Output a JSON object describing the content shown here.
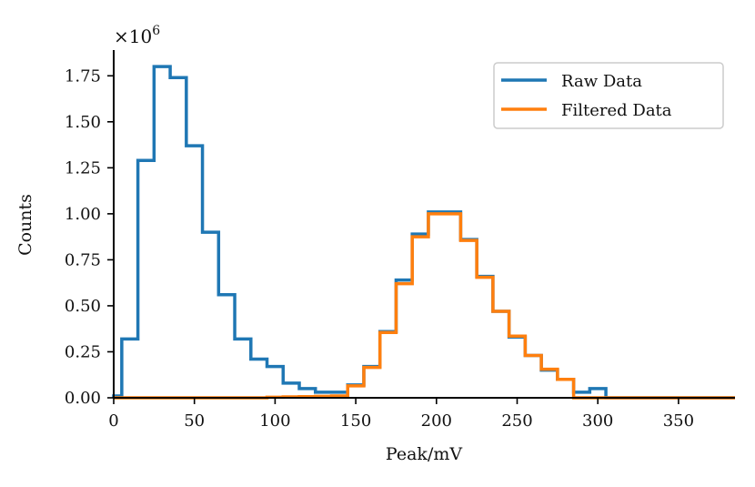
{
  "chart_data": {
    "type": "histogram",
    "title": "",
    "xlabel": "Peak/mV",
    "ylabel": "Counts",
    "y_multiplier": {
      "base": "×10",
      "exponent": "6"
    },
    "xlim": [
      0,
      385
    ],
    "ylim": [
      0,
      1.88
    ],
    "xticks": [
      0,
      50,
      100,
      150,
      200,
      250,
      300,
      350
    ],
    "yticks": [
      0.0,
      0.25,
      0.5,
      0.75,
      1.0,
      1.25,
      1.5,
      1.75
    ],
    "yticklabels": [
      "0.00",
      "0.25",
      "0.50",
      "0.75",
      "1.00",
      "1.25",
      "1.50",
      "1.75"
    ],
    "grid": false,
    "legend_position": "top-right",
    "bin_width": 10,
    "bin_edges": [
      0,
      5,
      15,
      25,
      35,
      45,
      55,
      65,
      75,
      85,
      95,
      105,
      115,
      125,
      135,
      145,
      155,
      165,
      175,
      185,
      195,
      205,
      215,
      225,
      235,
      245,
      255,
      265,
      275,
      285,
      295,
      305,
      385
    ],
    "series": [
      {
        "name": "Raw Data",
        "color": "#1f77b4",
        "values": [
          0.01,
          0.32,
          1.29,
          1.8,
          1.74,
          1.37,
          0.9,
          0.56,
          0.32,
          0.21,
          0.17,
          0.08,
          0.05,
          0.03,
          0.03,
          0.07,
          0.17,
          0.36,
          0.64,
          0.89,
          1.01,
          1.01,
          0.86,
          0.66,
          0.47,
          0.33,
          0.23,
          0.15,
          0.1,
          0.03,
          0.05,
          0.0
        ]
      },
      {
        "name": "Filtered Data",
        "color": "#ff7f0e",
        "values": [
          0.0,
          0.0,
          0.0,
          0.0,
          0.0,
          0.0,
          0.0,
          0.0,
          0.0,
          0.0,
          0.003,
          0.005,
          0.006,
          0.008,
          0.01,
          0.065,
          0.165,
          0.355,
          0.62,
          0.875,
          1.0,
          1.0,
          0.855,
          0.655,
          0.47,
          0.335,
          0.23,
          0.155,
          0.1,
          0.0,
          0.0,
          0.0
        ]
      }
    ]
  }
}
